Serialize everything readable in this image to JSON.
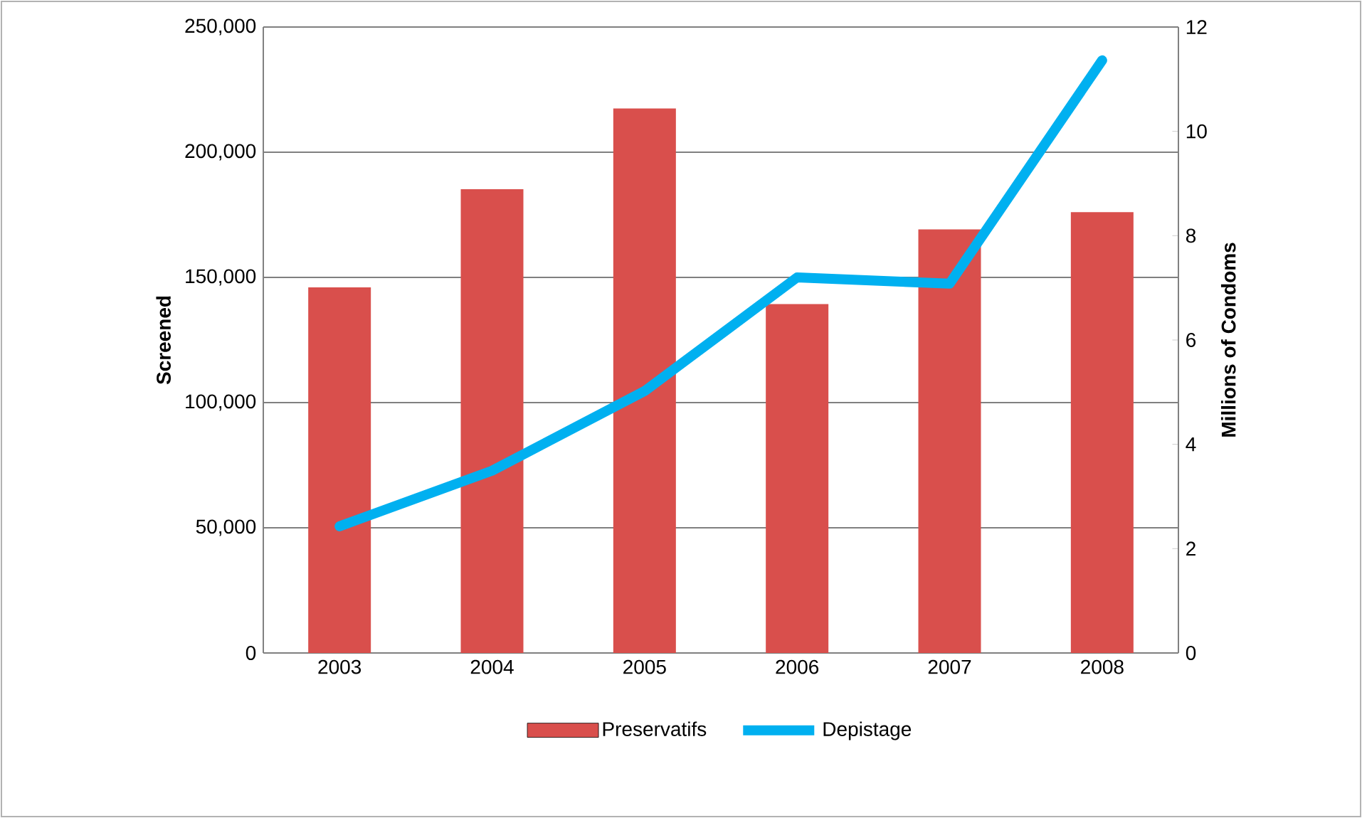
{
  "chart_data": {
    "type": "bar",
    "categories": [
      "2003",
      "2004",
      "2005",
      "2006",
      "2007",
      "2008"
    ],
    "series": [
      {
        "name": "Preservatifs",
        "axis": "y2",
        "color": "#d94f4c",
        "values": [
          7.01,
          8.89,
          10.44,
          6.69,
          8.12,
          8.45
        ]
      },
      {
        "name": "Depistage",
        "type": "line",
        "axis": "y",
        "color": "#00b0f0",
        "values": [
          50600,
          72800,
          104600,
          150000,
          147500,
          236700
        ]
      }
    ],
    "ylabel": "Screened",
    "y2label": "Millions of Condoms",
    "ylim": [
      0,
      250000
    ],
    "yticks": [
      {
        "value": 0,
        "label": "0"
      },
      {
        "value": 50000,
        "label": "50,000"
      },
      {
        "value": 100000,
        "label": "100,000"
      },
      {
        "value": 150000,
        "label": "150,000"
      },
      {
        "value": 200000,
        "label": "200,000"
      },
      {
        "value": 250000,
        "label": "250,000"
      }
    ],
    "y2lim": [
      0,
      12
    ],
    "y2ticks": [
      0,
      2,
      4,
      6,
      8,
      10,
      12
    ],
    "grid": "y",
    "legend": "bottom",
    "marker": "none",
    "line_style": "solid"
  }
}
